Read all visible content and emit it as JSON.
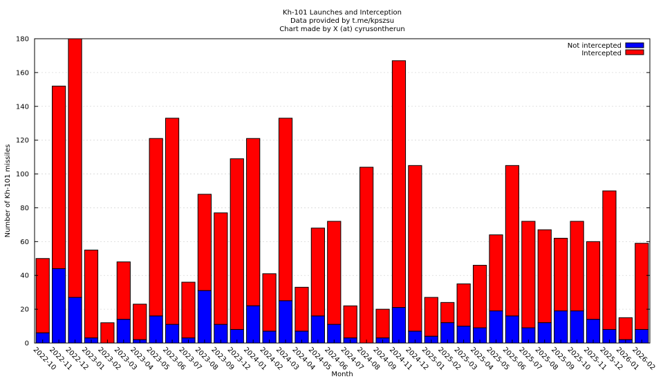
{
  "chart_data": {
    "type": "bar",
    "stacked": true,
    "title": [
      "Kh-101 Launches and Interception",
      "Data provided by t.me/kpszsu",
      "Chart made by X (at) cyrusontherun"
    ],
    "xlabel": "Month",
    "ylabel": "Number of Kh-101 missiles",
    "ylim": [
      0,
      180
    ],
    "yticks": [
      0,
      20,
      40,
      60,
      80,
      100,
      120,
      140,
      160,
      180
    ],
    "grid": true,
    "legend_position": "top-right",
    "categories": [
      "2022-10",
      "2022-11",
      "2022-12",
      "2023-01",
      "2023-02",
      "2023-03",
      "2023-04",
      "2023-05",
      "2023-06",
      "2023-07",
      "2023-08",
      "2023-09",
      "2023-12",
      "2024-01",
      "2024-02",
      "2024-03",
      "2024-04",
      "2024-05",
      "2024-06",
      "2024-07",
      "2024-08",
      "2024-09",
      "2024-11",
      "2024-12",
      "2025-01",
      "2025-02",
      "2025-03",
      "2025-04",
      "2025-05",
      "2025-06",
      "2025-07",
      "2025-08",
      "2025-09",
      "2025-10",
      "2025-11",
      "2025-12",
      "2026-01",
      "2026-02"
    ],
    "series": [
      {
        "name": "Not intercepted",
        "color": "#0000ff",
        "values": [
          6,
          44,
          27,
          3,
          0,
          14,
          2,
          16,
          11,
          3,
          31,
          11,
          8,
          22,
          7,
          25,
          7,
          16,
          11,
          3,
          0,
          3,
          21,
          7,
          4,
          12,
          10,
          9,
          19,
          16,
          9,
          12,
          19,
          19,
          14,
          8,
          2,
          8
        ]
      },
      {
        "name": "Intercepted",
        "color": "#ff0000",
        "values": [
          44,
          108,
          153,
          52,
          12,
          34,
          21,
          105,
          122,
          33,
          57,
          66,
          101,
          99,
          34,
          108,
          26,
          52,
          61,
          19,
          104,
          17,
          146,
          98,
          23,
          12,
          25,
          37,
          45,
          89,
          63,
          55,
          43,
          53,
          46,
          82,
          13,
          51
        ]
      }
    ]
  }
}
